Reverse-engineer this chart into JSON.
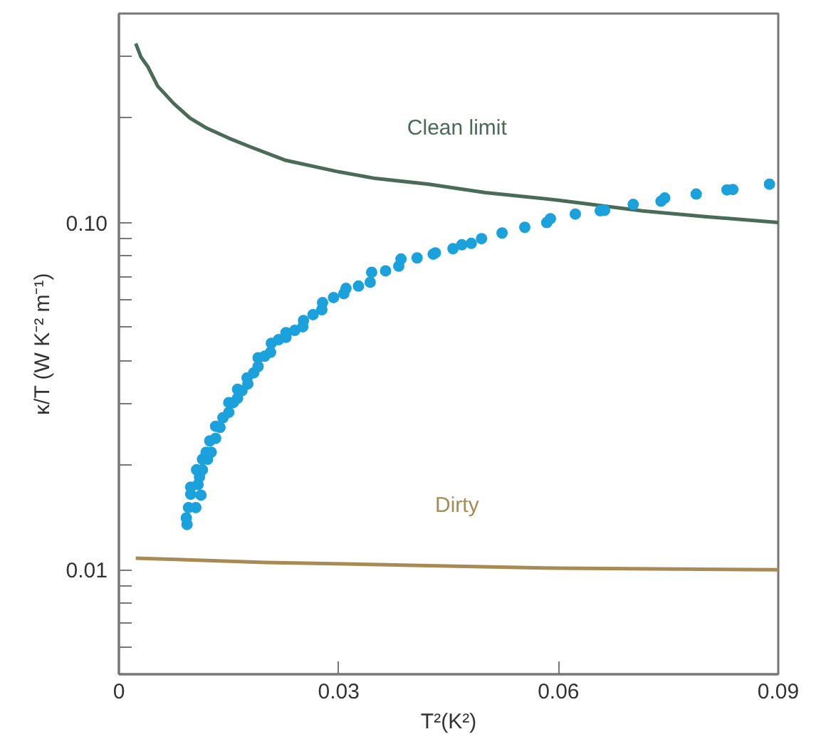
{
  "chart_data": {
    "type": "line",
    "xlabel": "T²(K²)",
    "ylabel": "κ/T (W K⁻² m⁻¹)",
    "log": "y",
    "grid": false,
    "xlim": [
      0,
      0.09
    ],
    "ylim": [
      0.005,
      0.4
    ],
    "xticks": [
      0,
      0.03,
      0.06,
      0.09
    ],
    "yticks": [
      {
        "value": 0.3,
        "label": null
      },
      {
        "value": 0.2,
        "label": null
      },
      {
        "value": 0.1,
        "label": "0.10"
      },
      {
        "value": 0.09,
        "label": null
      },
      {
        "value": 0.08,
        "label": null
      },
      {
        "value": 0.07,
        "label": null
      },
      {
        "value": 0.06,
        "label": null
      },
      {
        "value": 0.05,
        "label": null
      },
      {
        "value": 0.04,
        "label": null
      },
      {
        "value": 0.03,
        "label": null
      },
      {
        "value": 0.02,
        "label": null
      },
      0.01,
      {
        "value": 0.009,
        "label": null
      },
      {
        "value": 0.008,
        "label": null
      },
      {
        "value": 0.007,
        "label": null
      },
      {
        "value": 0.006,
        "label": null
      }
    ],
    "series": [
      {
        "name": "Clean limit",
        "color": "#4a6b57",
        "x": [
          0.0023,
          0.003,
          0.004,
          0.0053,
          0.0065,
          0.0075,
          0.0097,
          0.012,
          0.015,
          0.018,
          0.0228,
          0.03,
          0.035,
          0.0423,
          0.05,
          0.06,
          0.0715,
          0.08,
          0.09
        ],
        "values": [
          0.328,
          0.3,
          0.28,
          0.247,
          0.232,
          0.22,
          0.2,
          0.187,
          0.175,
          0.165,
          0.151,
          0.14,
          0.134,
          0.129,
          0.122,
          0.116,
          0.108,
          0.104,
          0.1
        ]
      },
      {
        "name": "Dirty",
        "color": "#a88a55",
        "x": [
          0.0023,
          0.02,
          0.04,
          0.06,
          0.09
        ],
        "values": [
          0.0108,
          0.0105,
          0.0103,
          0.0101,
          0.01
        ]
      },
      {
        "type": "scatter",
        "color": "#1ba1dc",
        "marker": "circle",
        "x": [
          0.0093,
          0.0092,
          0.0095,
          0.0105,
          0.0098,
          0.0112,
          0.0098,
          0.0108,
          0.011,
          0.0106,
          0.0114,
          0.0114,
          0.0121,
          0.0119,
          0.0126,
          0.0124,
          0.0132,
          0.0132,
          0.0138,
          0.0142,
          0.015,
          0.015,
          0.0156,
          0.0162,
          0.0162,
          0.0168,
          0.0176,
          0.0175,
          0.0184,
          0.019,
          0.019,
          0.0199,
          0.0207,
          0.0208,
          0.0218,
          0.0228,
          0.0228,
          0.024,
          0.0251,
          0.0252,
          0.0265,
          0.0277,
          0.0278,
          0.0293,
          0.0307,
          0.031,
          0.0327,
          0.0343,
          0.0345,
          0.0364,
          0.0382,
          0.0385,
          0.0407,
          0.0429,
          0.0432,
          0.0456,
          0.0468,
          0.0481,
          0.0495,
          0.0523,
          0.0554,
          0.0584,
          0.0589,
          0.0623,
          0.0657,
          0.0663,
          0.0702,
          0.074,
          0.0745,
          0.0788,
          0.083,
          0.0838,
          0.0888
        ],
        "values": [
          0.0135,
          0.0141,
          0.0151,
          0.0151,
          0.0165,
          0.0164,
          0.0173,
          0.0176,
          0.0185,
          0.0194,
          0.0194,
          0.0208,
          0.0208,
          0.0218,
          0.0218,
          0.0235,
          0.0239,
          0.0259,
          0.0257,
          0.0274,
          0.0284,
          0.0303,
          0.0303,
          0.0312,
          0.0331,
          0.0328,
          0.0343,
          0.0357,
          0.0369,
          0.0385,
          0.0408,
          0.0412,
          0.0423,
          0.0449,
          0.046,
          0.0467,
          0.0482,
          0.0489,
          0.0501,
          0.0522,
          0.0543,
          0.0561,
          0.0588,
          0.0608,
          0.0624,
          0.0646,
          0.0656,
          0.0673,
          0.0719,
          0.0726,
          0.0749,
          0.0785,
          0.0791,
          0.0811,
          0.0818,
          0.0841,
          0.0863,
          0.0871,
          0.0899,
          0.0933,
          0.0969,
          0.1,
          0.1026,
          0.1058,
          0.1081,
          0.1085,
          0.1128,
          0.1152,
          0.1177,
          0.1208,
          0.1242,
          0.1245,
          0.129
        ]
      }
    ]
  }
}
